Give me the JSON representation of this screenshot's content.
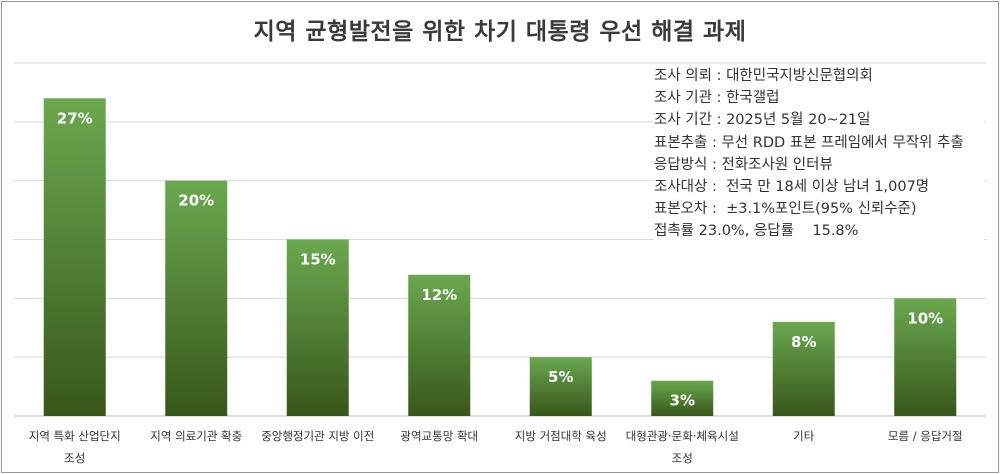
{
  "chart_data": {
    "type": "bar",
    "title": "지역 균형발전을 위한 차기 대통령 우선 해결 과제",
    "categories": [
      [
        "지역 특화 산업단지",
        "조성"
      ],
      [
        "지역 의료기관 확충"
      ],
      [
        "중앙행정기관 지방 이전"
      ],
      [
        "광역교통망 확대"
      ],
      [
        "지방 거점대학 육성"
      ],
      [
        "대형관광·문화·체육시설",
        "조성"
      ],
      [
        "기타"
      ],
      [
        "모름 / 응답거절"
      ]
    ],
    "values": [
      27,
      20,
      15,
      12,
      5,
      3,
      8,
      10
    ],
    "data_labels": [
      "27%",
      "20%",
      "15%",
      "12%",
      "5%",
      "3%",
      "8%",
      "10%"
    ],
    "ylim": [
      0,
      30
    ],
    "grid": true,
    "colors": {
      "bar_top": "#6aa84f",
      "bar_bottom": "#38571a",
      "label": "#ffffff",
      "grid": "#d9d9d9"
    }
  },
  "survey_info": [
    "조사 의뢰 : 대한민국지방신문협의회",
    "조사 기관 : 한국갤럽",
    "조사 기간 : 2025년 5월 20~21일",
    "표본추출 : 무선 RDD 표본 프레임에서 무작위 추출",
    "응답방식 : 전화조사원 인터뷰",
    "조사대상 :  전국 만 18세 이상 남녀 1,007명",
    "표본오차 :  ±3.1%포인트(95% 신뢰수준)",
    "접촉률 23.0%, 응답률    15.8%"
  ]
}
